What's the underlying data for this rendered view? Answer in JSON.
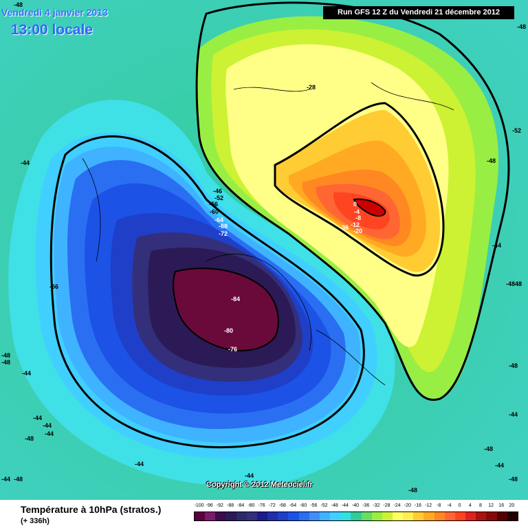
{
  "header": {
    "valid_date": "Vendredi 4 janvier 2013",
    "valid_time": "13:00 locale",
    "run_info": "Run GFS 12 Z du Vendredi 21 décembre 2012"
  },
  "footer": {
    "parameter_title": "Température à 10hPa (stratos.)",
    "lead_time": "(+ 336h)",
    "copyright": "Copyright © 2012 Meteociel.fr"
  },
  "legend": {
    "values": [
      "-100",
      "-96",
      "-92",
      "-88",
      "-84",
      "-80",
      "-76",
      "-72",
      "-68",
      "-64",
      "-60",
      "-56",
      "-52",
      "-48",
      "-44",
      "-40",
      "-36",
      "-32",
      "-28",
      "-24",
      "-20",
      "-16",
      "-12",
      "-8",
      "-4",
      "0",
      "4",
      "8",
      "12",
      "16",
      "20"
    ],
    "colors": [
      "#5b0040",
      "#7a1a6a",
      "#3d0a4a",
      "#2b1a55",
      "#2c2a66",
      "#332f7a",
      "#1b1b8c",
      "#1e2fa8",
      "#1f3fc8",
      "#1c52e6",
      "#2a6ff2",
      "#3f8ff8",
      "#3fb3ff",
      "#40cfff",
      "#33e0e0",
      "#33cc99",
      "#66dd66",
      "#99ee44",
      "#ccf233",
      "#ffff66",
      "#ffee55",
      "#ffcc33",
      "#ffaa22",
      "#ff8822",
      "#ff6633",
      "#ff4422",
      "#dd2222",
      "#aa1111",
      "#880808",
      "#550000",
      "#220000"
    ]
  },
  "isotherm_labels": [
    {
      "text": "-48"
    },
    {
      "text": "-44"
    },
    {
      "text": "-28"
    },
    {
      "text": "-52"
    },
    {
      "text": "-48"
    },
    {
      "text": "-44"
    },
    {
      "text": "-4848"
    },
    {
      "text": "-48"
    },
    {
      "text": "-44"
    },
    {
      "text": "-48"
    },
    {
      "text": "-44"
    },
    {
      "text": "-56"
    },
    {
      "text": "-48"
    },
    {
      "text": "-44"
    },
    {
      "text": "-44"
    },
    {
      "text": "-44"
    },
    {
      "text": "-48"
    },
    {
      "text": "-44"
    },
    {
      "text": "-48"
    },
    {
      "text": "-44"
    },
    {
      "text": "-48"
    },
    {
      "text": "-44"
    },
    {
      "text": "-48"
    },
    {
      "text": "-44"
    },
    {
      "text": "-48"
    },
    {
      "text": "-48"
    },
    {
      "text": "-46"
    },
    {
      "text": "-52"
    },
    {
      "text": "-56"
    },
    {
      "text": "-60"
    },
    {
      "text": "-64"
    },
    {
      "text": "-68"
    },
    {
      "text": "-72"
    },
    {
      "text": "-84"
    },
    {
      "text": "-80"
    },
    {
      "text": "-76"
    },
    {
      "text": "0"
    },
    {
      "text": "-4"
    },
    {
      "text": "-8"
    },
    {
      "text": "-12"
    },
    {
      "text": "-20"
    },
    {
      "text": "-36"
    }
  ],
  "colors": {
    "background": "#33cc99",
    "cold_core": "#6a0a3a",
    "warm_core": "#cc0000",
    "contour": "#000000"
  }
}
